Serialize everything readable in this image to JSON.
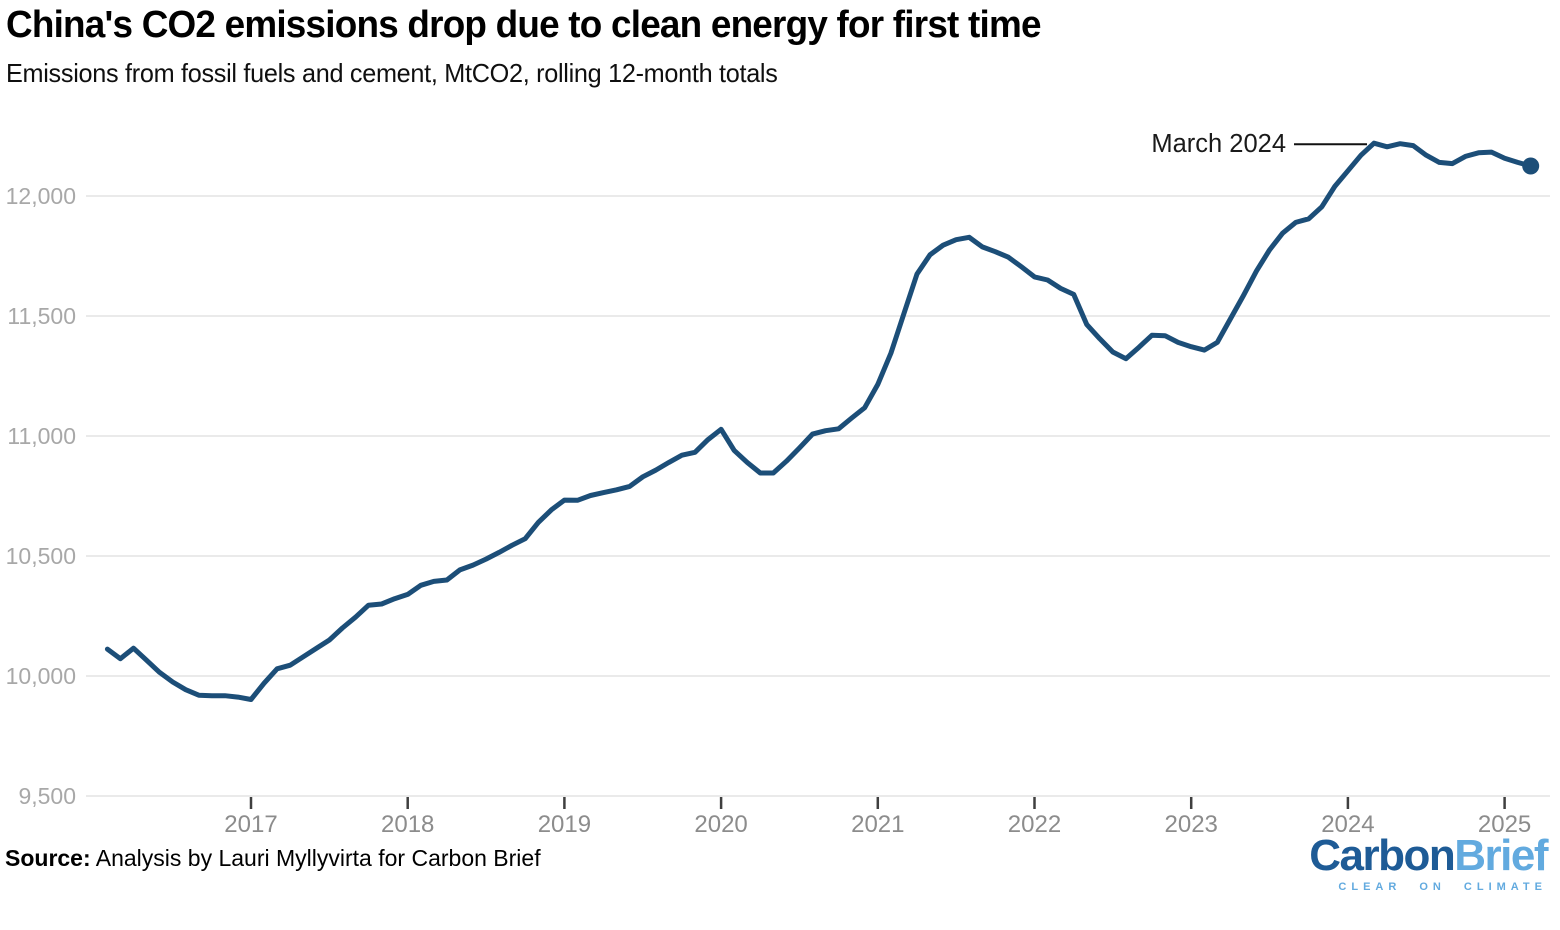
{
  "header": {
    "title": "China's CO2 emissions drop due to clean energy for first time",
    "subtitle": "Emissions from fossil fuels and cement, MtCO2, rolling 12-month totals"
  },
  "footer": {
    "source_label": "Source:",
    "source_text": " Analysis by Lauri Myllyvirta for Carbon Brief",
    "logo": {
      "part1": "Carbon",
      "part2": "Brief",
      "tagline": "CLEAR ON CLIMATE"
    }
  },
  "colors": {
    "line": "#1C4E78",
    "marker": "#1C4E78",
    "grid": "#EAEAEA",
    "tick": "#3F3F3F",
    "y_label": "#A8A8A8",
    "x_label": "#8C8C8C",
    "annotation_text": "#1A1A1A",
    "annotation_line": "#111111",
    "logo_dark": "#1E5B96",
    "logo_light": "#62AADF"
  },
  "chart_data": {
    "type": "line",
    "title": "China's CO2 emissions drop due to clean energy for first time",
    "subtitle": "Emissions from fossil fuels and cement, MtCO2, rolling 12-month totals",
    "unit": "MtCO2",
    "series_name": "Rolling 12-month CO2 emissions from fossil fuels and cement",
    "start_month": "2016-02",
    "frequency": "monthly",
    "values": [
      10112,
      10072,
      10116,
      10066,
      10015,
      9975,
      9943,
      9920,
      9918,
      9918,
      9912,
      9902,
      9970,
      10030,
      10045,
      10080,
      10115,
      10150,
      10200,
      10245,
      10295,
      10300,
      10322,
      10340,
      10378,
      10394,
      10400,
      10442,
      10462,
      10487,
      10515,
      10545,
      10572,
      10640,
      10692,
      10733,
      10732,
      10752,
      10764,
      10776,
      10790,
      10830,
      10858,
      10890,
      10920,
      10932,
      10985,
      11028,
      10940,
      10890,
      10846,
      10846,
      10895,
      10950,
      11008,
      11022,
      11030,
      11075,
      11118,
      11215,
      11345,
      11510,
      11675,
      11755,
      11795,
      11818,
      11828,
      11788,
      11768,
      11745,
      11705,
      11663,
      11650,
      11615,
      11590,
      11465,
      11405,
      11350,
      11322,
      11370,
      11420,
      11418,
      11390,
      11372,
      11358,
      11390,
      11488,
      11585,
      11688,
      11775,
      11845,
      11890,
      11905,
      11955,
      12040,
      12105,
      12170,
      12220,
      12205,
      12218,
      12210,
      12170,
      12140,
      12135,
      12165,
      12180,
      12183,
      12157,
      12140,
      12125
    ],
    "ylim": [
      9500,
      12300
    ],
    "y_ticks": [
      {
        "value": 9500,
        "label": "9,500"
      },
      {
        "value": 10000,
        "label": "10,000"
      },
      {
        "value": 10500,
        "label": "10,500"
      },
      {
        "value": 11000,
        "label": "11,000"
      },
      {
        "value": 11500,
        "label": "11,500"
      },
      {
        "value": 12000,
        "label": "12,000"
      }
    ],
    "x_ticks": [
      {
        "year": 2017,
        "label": "2017"
      },
      {
        "year": 2018,
        "label": "2018"
      },
      {
        "year": 2019,
        "label": "2019"
      },
      {
        "year": 2020,
        "label": "2020"
      },
      {
        "year": 2021,
        "label": "2021"
      },
      {
        "year": 2022,
        "label": "2022"
      },
      {
        "year": 2023,
        "label": "2023"
      },
      {
        "year": 2024,
        "label": "2024"
      },
      {
        "year": 2025,
        "label": "2025"
      }
    ],
    "grid": "horizontal",
    "legend": "none",
    "annotation": {
      "label": "March 2024",
      "month": "2024-03",
      "value": 12220
    },
    "end_marker": {
      "month": "2025-03",
      "value": 12125
    }
  }
}
